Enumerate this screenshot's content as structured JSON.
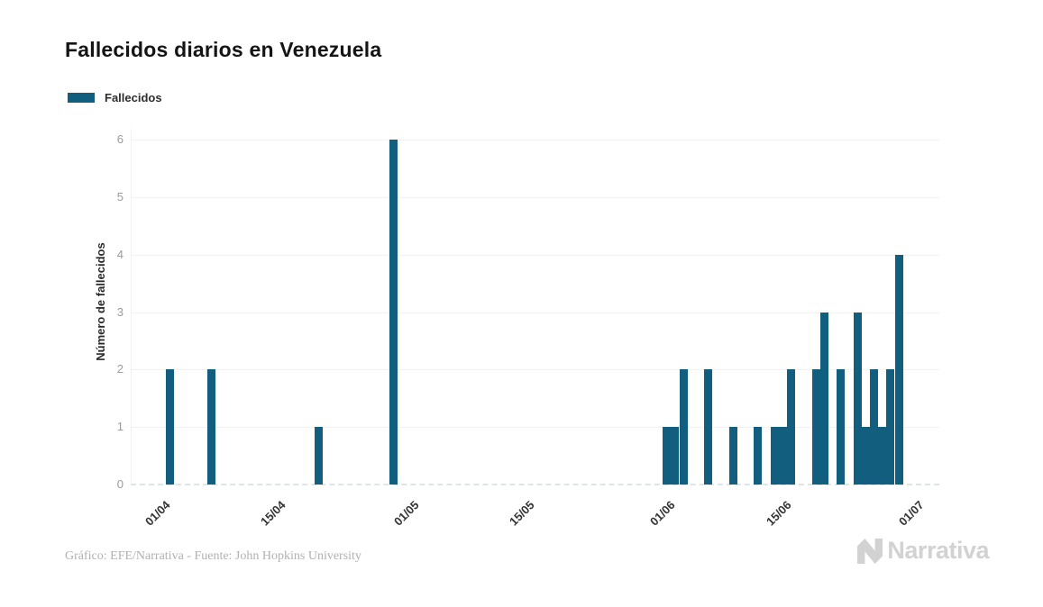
{
  "title": "Fallecidos diarios en Venezuela",
  "legend": {
    "label": "Fallecidos"
  },
  "footer": {
    "credit": "Gráfico: EFE/Narrativa - Fuente: John Hopkins University"
  },
  "brand": {
    "name": "Narrativa"
  },
  "colors": {
    "bar": "#125e7e",
    "grid": "#f1f1f1",
    "baseline": "#dde5e9",
    "logo": "#d2d2d2"
  },
  "chart_data": {
    "type": "bar",
    "title": "Fallecidos diarios en Venezuela",
    "xlabel": "",
    "ylabel": "Número de fallecidos",
    "ylim": [
      0,
      6
    ],
    "yticks": [
      0,
      1,
      2,
      3,
      4,
      5,
      6
    ],
    "xticks": [
      "01/04",
      "15/04",
      "01/05",
      "15/05",
      "01/06",
      "15/06",
      "01/07"
    ],
    "grid": true,
    "legend_position": "top-left",
    "series": [
      {
        "name": "Fallecidos",
        "color": "#125e7e",
        "points": [
          [
            "04/04",
            2
          ],
          [
            "09/04",
            2
          ],
          [
            "22/04",
            1
          ],
          [
            "01/05",
            6
          ],
          [
            "03/06",
            1
          ],
          [
            "04/06",
            1
          ],
          [
            "05/06",
            2
          ],
          [
            "08/06",
            2
          ],
          [
            "11/06",
            1
          ],
          [
            "14/06",
            1
          ],
          [
            "16/06",
            1
          ],
          [
            "17/06",
            1
          ],
          [
            "18/06",
            2
          ],
          [
            "21/06",
            2
          ],
          [
            "22/06",
            3
          ],
          [
            "24/06",
            2
          ],
          [
            "26/06",
            3
          ],
          [
            "27/06",
            1
          ],
          [
            "28/06",
            2
          ],
          [
            "29/06",
            1
          ],
          [
            "30/06",
            2
          ],
          [
            "01/07",
            4
          ]
        ]
      }
    ]
  }
}
